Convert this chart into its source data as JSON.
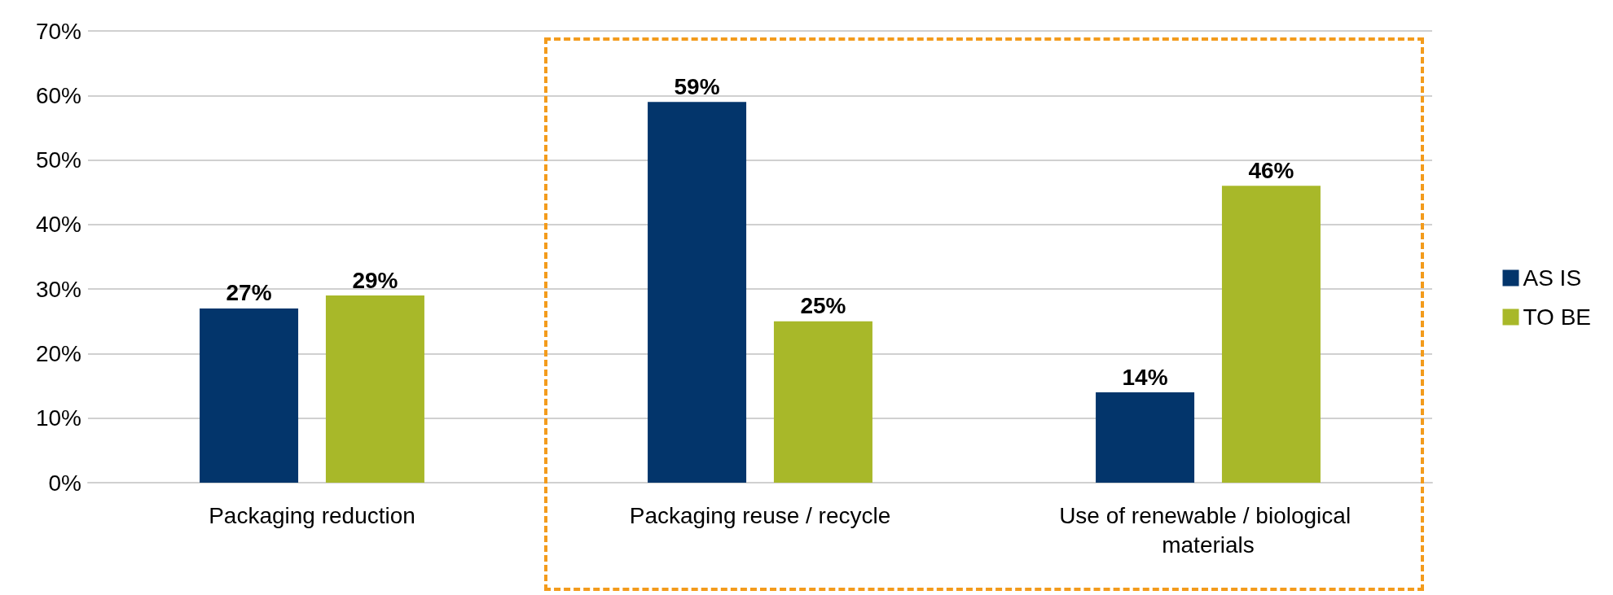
{
  "chart_data": {
    "type": "bar",
    "categories": [
      "Packaging reduction",
      "Packaging reuse / recycle",
      "Use of renewable / biological materials"
    ],
    "series": [
      {
        "name": "AS IS",
        "color": "#03356b",
        "values": [
          27,
          59,
          14
        ],
        "value_labels": [
          "27%",
          "59%",
          "14%"
        ]
      },
      {
        "name": "TO BE",
        "color": "#a8b829",
        "values": [
          29,
          25,
          46
        ],
        "value_labels": [
          "29%",
          "25%",
          "46%"
        ]
      }
    ],
    "ylim": [
      0,
      70
    ],
    "yticks": [
      {
        "value": 0,
        "label": "0%"
      },
      {
        "value": 10,
        "label": "10%"
      },
      {
        "value": 20,
        "label": "20%"
      },
      {
        "value": 30,
        "label": "30%"
      },
      {
        "value": 40,
        "label": "40%"
      },
      {
        "value": 50,
        "label": "50%"
      },
      {
        "value": 60,
        "label": "60%"
      },
      {
        "value": 70,
        "label": "70%"
      }
    ],
    "grid": "y",
    "legend": "right"
  }
}
